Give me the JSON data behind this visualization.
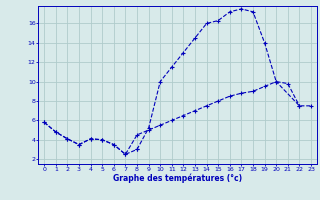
{
  "bg_color": "#d8eaea",
  "grid_color": "#b0cccc",
  "line_color": "#0000bb",
  "xlabel": "Graphe des températures (°c)",
  "line1_x": [
    0,
    1,
    2,
    3,
    4,
    5,
    6,
    7,
    8
  ],
  "line1_y": [
    5.8,
    4.8,
    4.1,
    3.5,
    4.1,
    4.0,
    3.5,
    2.5,
    3.0
  ],
  "line2_x": [
    8,
    9,
    10,
    11,
    12,
    13,
    14,
    15,
    16,
    17,
    18,
    19,
    20,
    21,
    22
  ],
  "line2_y": [
    3.0,
    5.2,
    10.0,
    11.5,
    13.0,
    14.5,
    16.0,
    16.3,
    17.2,
    17.5,
    17.2,
    14.0,
    10.0,
    9.8,
    7.5
  ],
  "line3_x": [
    0,
    1,
    2,
    3,
    4,
    5,
    6,
    7,
    8,
    9,
    10,
    11,
    12,
    13,
    14,
    15,
    16,
    17,
    18,
    19,
    20,
    22,
    23
  ],
  "line3_y": [
    5.8,
    4.8,
    4.1,
    3.5,
    4.1,
    4.0,
    3.5,
    2.5,
    4.5,
    5.0,
    5.5,
    6.0,
    6.5,
    7.0,
    7.5,
    8.0,
    8.5,
    8.8,
    9.0,
    9.5,
    10.0,
    7.5,
    7.5
  ],
  "ylim": [
    1.5,
    17.8
  ],
  "xlim": [
    -0.5,
    23.5
  ],
  "yticks": [
    2,
    4,
    6,
    8,
    10,
    12,
    14,
    16
  ],
  "xticks": [
    0,
    1,
    2,
    3,
    4,
    5,
    6,
    7,
    8,
    9,
    10,
    11,
    12,
    13,
    14,
    15,
    16,
    17,
    18,
    19,
    20,
    21,
    22,
    23
  ]
}
